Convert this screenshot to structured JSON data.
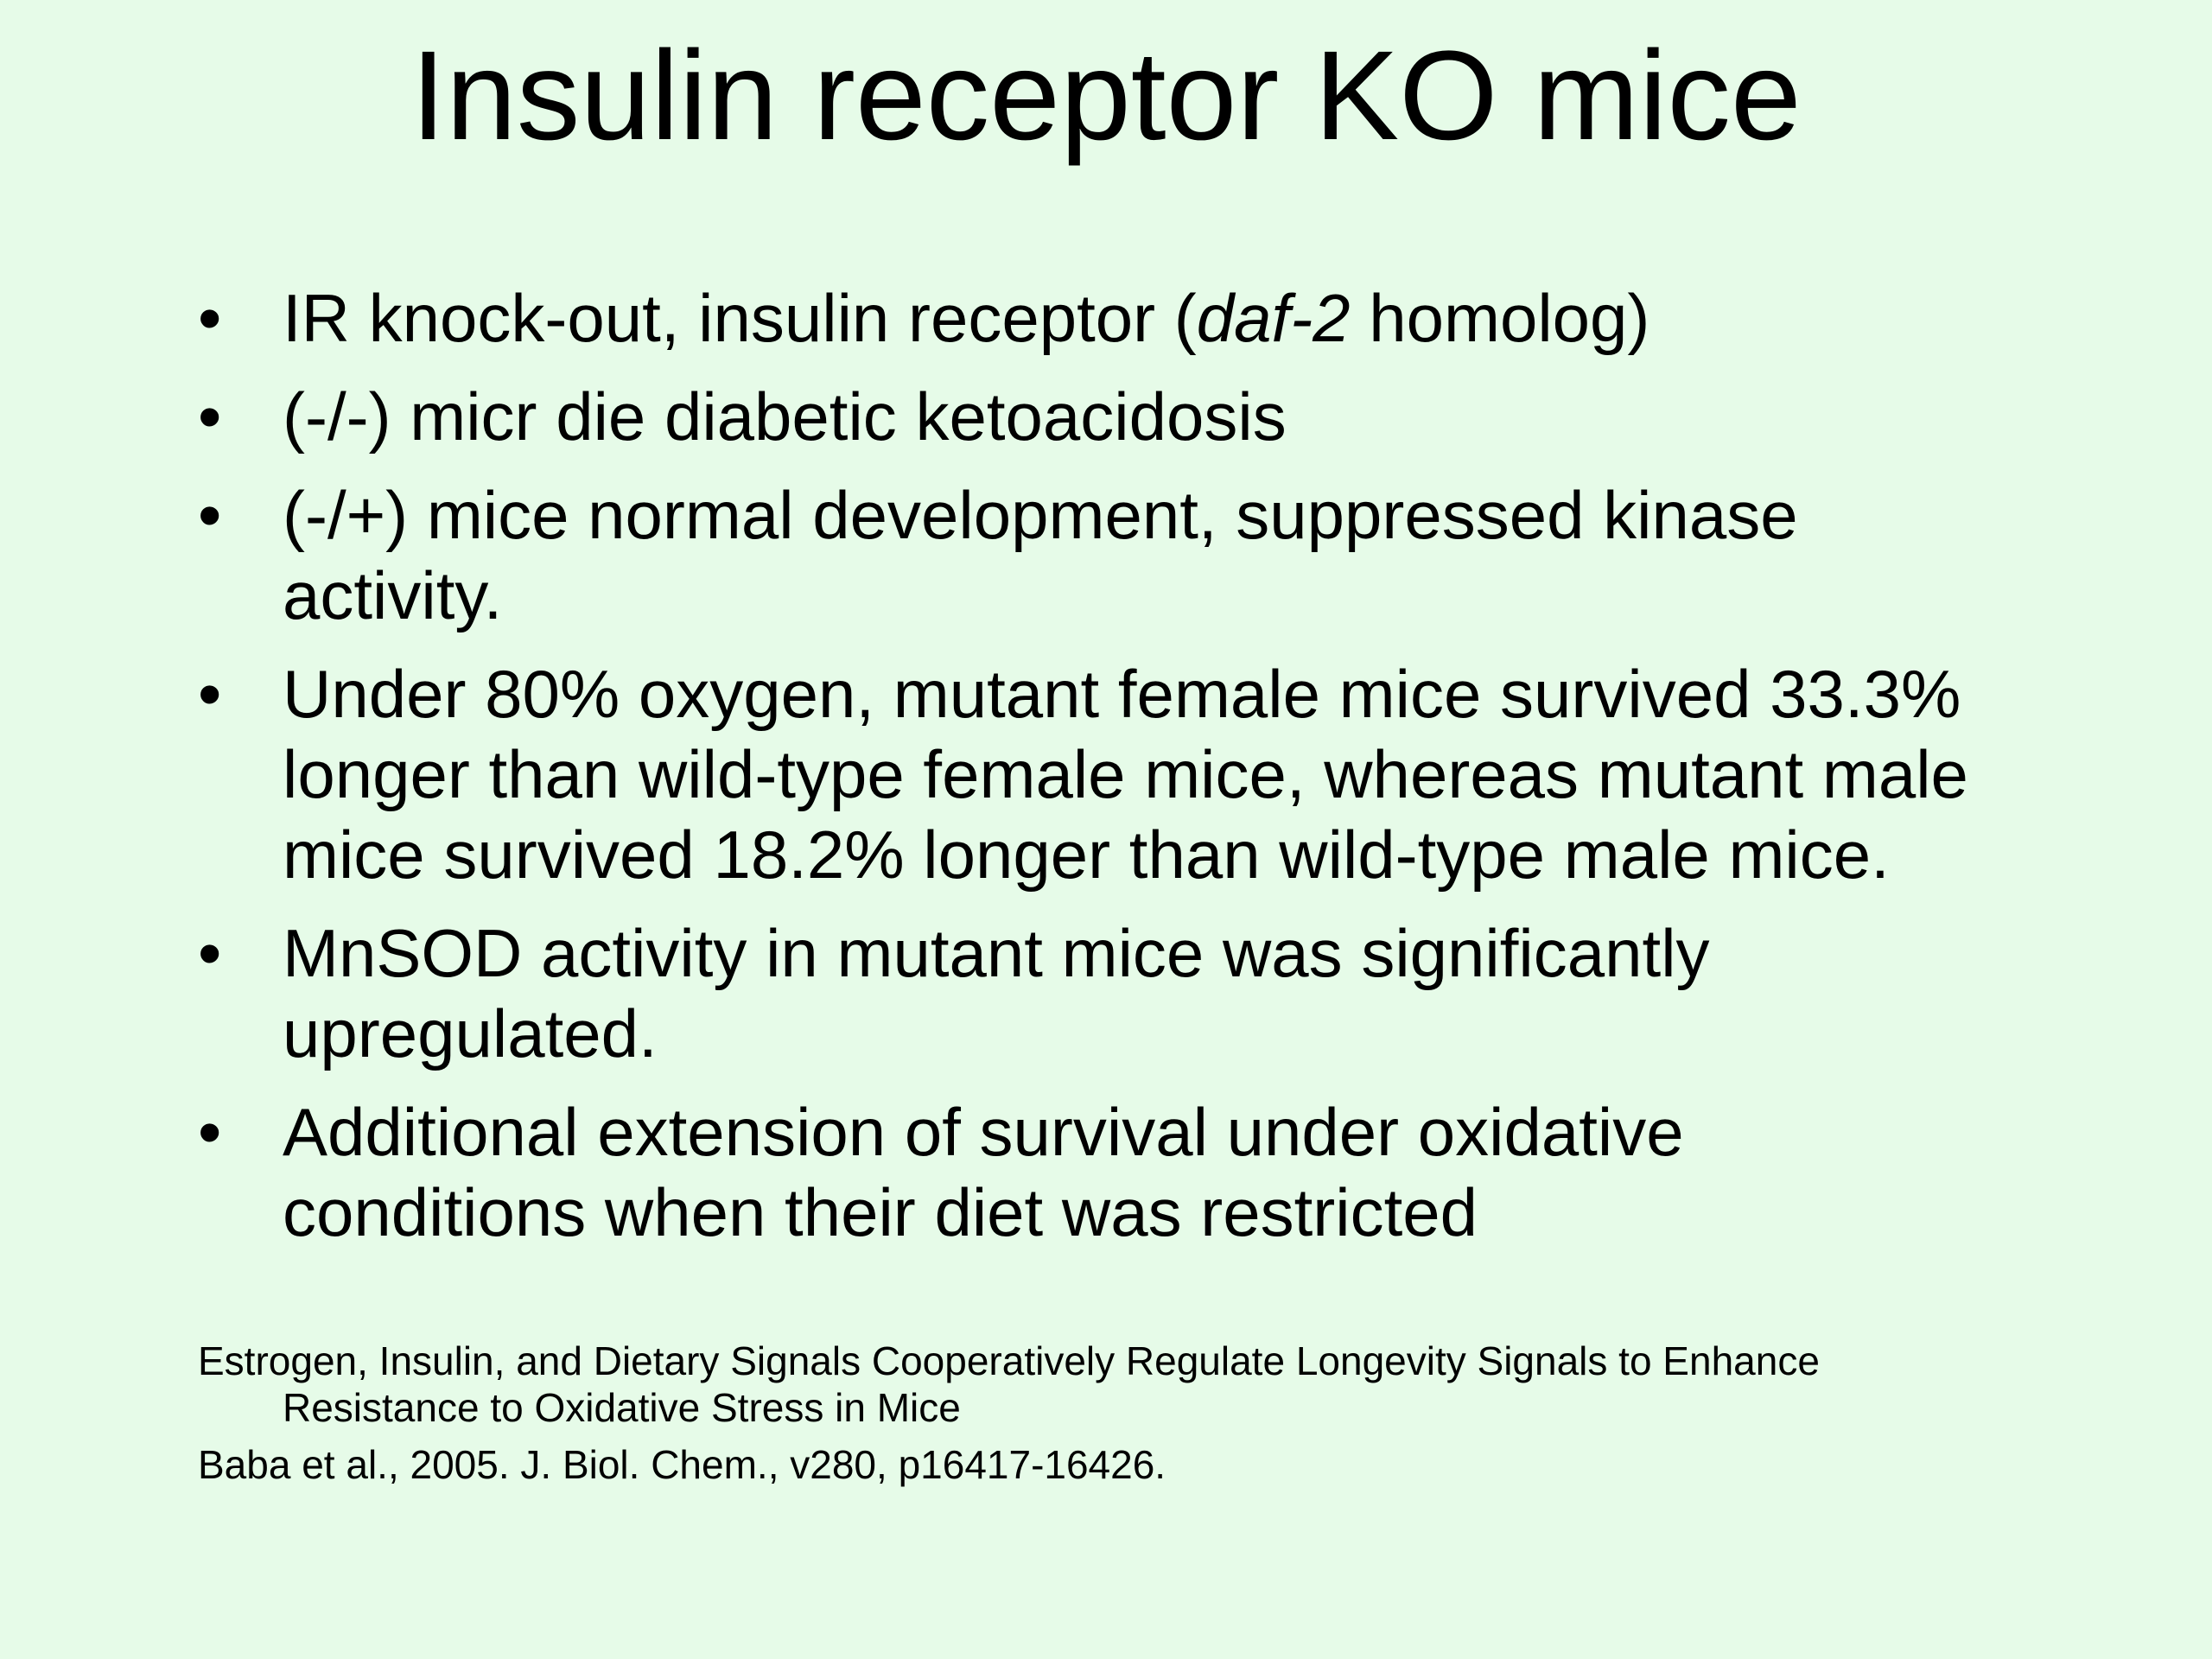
{
  "title": "Insulin receptor KO mice",
  "bullets": [
    [
      "IR knock-out, insulin receptor (",
      "daf-2",
      " homolog)"
    ],
    [
      "(-/-) micr die diabetic ketoacidosis"
    ],
    [
      "(-/+) mice normal development, suppressed kinase activity."
    ],
    [
      "Under 80% oxygen, mutant female mice survived 33.3% longer than wild-type female mice, whereas mutant male mice survived 18.2% longer than wild-type male mice."
    ],
    [
      "MnSOD activity in mutant mice was significantly upregulated."
    ],
    [
      "Additional extension of survival under oxidative conditions when their diet was restricted"
    ]
  ],
  "references": [
    "Estrogen, Insulin, and Dietary Signals Cooperatively Regulate Longevity Signals to Enhance Resistance to Oxidative Stress in Mice",
    "Baba et al., 2005. J. Biol. Chem., v280, p16417-16426."
  ]
}
